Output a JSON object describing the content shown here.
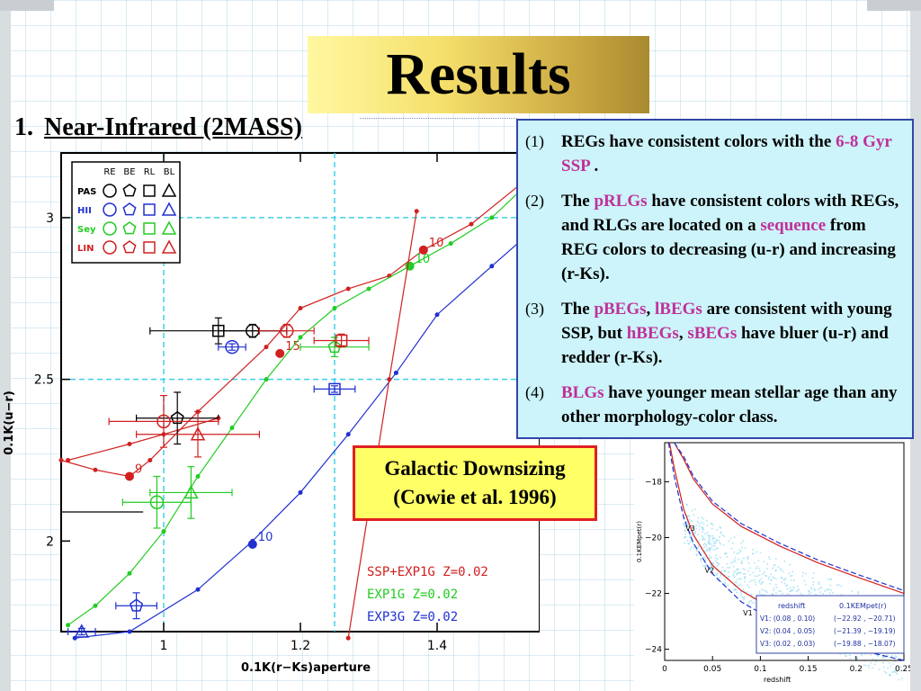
{
  "slide": {
    "title": "Results",
    "section_number": "1.",
    "section_title": "Near-Infrared (2MASS)"
  },
  "info_points": [
    {
      "idx": "(1)",
      "parts": [
        {
          "t": "REGs have consistent colors with the ",
          "hl": false
        },
        {
          "t": "6-8 Gyr SSP",
          "hl": true
        },
        {
          "t": " .",
          "hl": false
        }
      ]
    },
    {
      "idx": "(2)",
      "parts": [
        {
          "t": "The ",
          "hl": false
        },
        {
          "t": "pRLGs",
          "hl": true
        },
        {
          "t": " have consistent colors with REGs, and RLGs are located on a ",
          "hl": false
        },
        {
          "t": "sequence",
          "hl": true
        },
        {
          "t": " from REG colors to decreasing (u-r) and increasing (r-Ks).",
          "hl": false
        }
      ]
    },
    {
      "idx": "(3)",
      "parts": [
        {
          "t": "The ",
          "hl": false
        },
        {
          "t": "pBEGs",
          "hl": true
        },
        {
          "t": ", ",
          "hl": false
        },
        {
          "t": "lBEGs",
          "hl": true
        },
        {
          "t": " are consistent with young SSP, but ",
          "hl": false
        },
        {
          "t": "hBEGs",
          "hl": true
        },
        {
          "t": ", ",
          "hl": false
        },
        {
          "t": "sBEGs",
          "hl": true
        },
        {
          "t": " have bluer (u-r) and redder (r-Ks).",
          "hl": false
        }
      ]
    },
    {
      "idx": "(4)",
      "parts": [
        {
          "t": "BLGs",
          "hl": true
        },
        {
          "t": " have younger mean stellar age than any other morphology-color class.",
          "hl": false
        }
      ]
    }
  ],
  "callout": {
    "line1": "Galactic Downsizing",
    "line2": "(Cowie et al. 1996)"
  },
  "colors": {
    "red": "#d02020",
    "green": "#22cc22",
    "blue": "#2030d0",
    "black": "#000000",
    "cyan_grid": "#40d0e8",
    "highlight": "#c0309a"
  },
  "chart_data": [
    {
      "type": "scatter",
      "xlabel": "0.1K(r−Ks)aperture",
      "ylabel": "0.1K(u−r)",
      "xlim": [
        0.85,
        1.55
      ],
      "ylim": [
        1.72,
        3.2
      ],
      "x_ticks": [
        {
          "v": 1,
          "label": "1"
        },
        {
          "v": 1.2,
          "label": "1.2"
        },
        {
          "v": 1.4,
          "label": "1.4"
        }
      ],
      "y_ticks": [
        {
          "v": 2,
          "label": "2"
        },
        {
          "v": 2.5,
          "label": "2.5"
        },
        {
          "v": 3,
          "label": "3"
        }
      ],
      "ref_x": [
        1.0,
        1.25
      ],
      "ref_y": [
        2.5,
        3.0
      ],
      "legend": {
        "columns": [
          "RE",
          "BE",
          "RL",
          "BL"
        ],
        "rows": [
          {
            "label": "PAS",
            "color": "#000000"
          },
          {
            "label": "HII",
            "color": "#2030d0"
          },
          {
            "label": "Sey",
            "color": "#22cc22"
          },
          {
            "label": "LIN",
            "color": "#d02020"
          }
        ]
      },
      "model_legend": [
        {
          "label": "SSP+EXP1G Z=0.02",
          "color": "#d02020"
        },
        {
          "label": "EXP1G Z=0.02",
          "color": "#22cc22"
        },
        {
          "label": "EXP3G Z=0.02",
          "color": "#2030d0"
        }
      ],
      "series": [
        {
          "name": "SSP+EXP1G Z=0.02",
          "color": "#d02020",
          "x": [
            0.85,
            0.9,
            0.95,
            0.98,
            1.05,
            1.15,
            1.2,
            1.27,
            1.33,
            1.38,
            1.45,
            1.52
          ],
          "y": [
            2.25,
            2.22,
            2.2,
            2.25,
            2.4,
            2.6,
            2.72,
            2.78,
            2.82,
            2.9,
            2.98,
            3.1
          ],
          "markers": [
            {
              "x": 0.95,
              "y": 2.2,
              "label": "9"
            },
            {
              "x": 1.17,
              "y": 2.58,
              "label": "15"
            },
            {
              "x": 1.38,
              "y": 2.9,
              "label": "10"
            }
          ]
        },
        {
          "name": "EXP1G Z=0.02",
          "color": "#22cc22",
          "x": [
            0.86,
            0.9,
            0.95,
            1.0,
            1.05,
            1.1,
            1.15,
            1.2,
            1.25,
            1.3,
            1.36,
            1.42,
            1.48,
            1.54
          ],
          "y": [
            1.74,
            1.8,
            1.9,
            2.03,
            2.2,
            2.35,
            2.5,
            2.63,
            2.72,
            2.78,
            2.85,
            2.92,
            3.0,
            3.12
          ],
          "markers": [
            {
              "x": 1.36,
              "y": 2.85,
              "label": "10"
            }
          ]
        },
        {
          "name": "EXP3G Z=0.02",
          "color": "#2030d0",
          "x": [
            0.87,
            0.95,
            1.05,
            1.13,
            1.2,
            1.27,
            1.34,
            1.4,
            1.48,
            1.55
          ],
          "y": [
            1.7,
            1.72,
            1.85,
            2.0,
            2.15,
            2.33,
            2.52,
            2.7,
            2.85,
            2.98
          ],
          "markers": [
            {
              "x": 1.13,
              "y": 1.99,
              "label": "10"
            }
          ]
        },
        {
          "name": "",
          "color": "#d02020",
          "x": [
            1.37,
            1.33,
            1.3,
            1.27
          ],
          "y": [
            3.02,
            2.5,
            2.1,
            1.7
          ],
          "markers": []
        },
        {
          "name": "",
          "color": "#d02020",
          "x": [
            0.86,
            0.95,
            1.0,
            1.08
          ],
          "y": [
            2.25,
            2.3,
            2.33,
            2.38
          ],
          "markers": []
        }
      ],
      "points": [
        {
          "x": 1.08,
          "y": 2.65,
          "xerr": 0.1,
          "yerr": 0.04,
          "shape": "square",
          "color": "#000000"
        },
        {
          "x": 1.13,
          "y": 2.65,
          "xerr": 0.05,
          "yerr": 0.02,
          "shape": "circle",
          "color": "#000000"
        },
        {
          "x": 1.18,
          "y": 2.65,
          "xerr": 0.04,
          "yerr": 0.02,
          "shape": "circle",
          "color": "#d02020"
        },
        {
          "x": 1.1,
          "y": 2.6,
          "xerr": 0.02,
          "yerr": 0.01,
          "shape": "circle",
          "color": "#2030d0"
        },
        {
          "x": 1.25,
          "y": 2.6,
          "xerr": 0.05,
          "yerr": 0.03,
          "shape": "pentagon",
          "color": "#22cc22"
        },
        {
          "x": 1.26,
          "y": 2.62,
          "xerr": 0.04,
          "yerr": 0.02,
          "shape": "square",
          "color": "#d02020"
        },
        {
          "x": 1.25,
          "y": 2.47,
          "xerr": 0.03,
          "yerr": 0.01,
          "shape": "square",
          "color": "#2030d0"
        },
        {
          "x": 1.02,
          "y": 2.38,
          "xerr": 0.06,
          "yerr": 0.08,
          "shape": "pentagon",
          "color": "#000000"
        },
        {
          "x": 1.0,
          "y": 2.37,
          "xerr": 0.08,
          "yerr": 0.08,
          "shape": "circle",
          "color": "#d02020"
        },
        {
          "x": 1.05,
          "y": 2.33,
          "xerr": 0.09,
          "yerr": 0.07,
          "shape": "triangle",
          "color": "#d02020"
        },
        {
          "x": 0.99,
          "y": 2.12,
          "xerr": 0.05,
          "yerr": 0.08,
          "shape": "circle",
          "color": "#22cc22"
        },
        {
          "x": 1.04,
          "y": 2.15,
          "xerr": 0.06,
          "yerr": 0.08,
          "shape": "triangle",
          "color": "#22cc22"
        },
        {
          "x": 0.96,
          "y": 1.8,
          "xerr": 0.03,
          "yerr": 0.04,
          "shape": "pentagon",
          "color": "#2030d0"
        },
        {
          "x": 0.88,
          "y": 1.72,
          "xerr": 0.02,
          "yerr": 0.01,
          "shape": "triangle",
          "color": "#2030d0"
        }
      ],
      "hbars": [
        {
          "y": 2.09,
          "x1": 0.85,
          "x2": 0.97,
          "color": "#000000"
        }
      ]
    },
    {
      "type": "scatter",
      "xlabel": "redshift",
      "ylabel": "0.1KEMpet(r)",
      "xlim": [
        0,
        0.25
      ],
      "ylim": [
        -16.6,
        -24.4
      ],
      "x_ticks": [
        {
          "v": 0,
          "label": "0"
        },
        {
          "v": 0.05,
          "label": "0.05"
        },
        {
          "v": 0.1,
          "label": "0.1"
        },
        {
          "v": 0.15,
          "label": "0.15"
        },
        {
          "v": 0.2,
          "label": "0.2"
        },
        {
          "v": 0.25,
          "label": "0.25"
        }
      ],
      "y_ticks": [
        {
          "v": -18,
          "label": "−18"
        },
        {
          "v": -20,
          "label": "−20"
        },
        {
          "v": -22,
          "label": "−22"
        },
        {
          "v": -24,
          "label": "−24"
        }
      ],
      "curves": [
        {
          "color": "#d02020",
          "dash": false,
          "x": [
            0.005,
            0.01,
            0.02,
            0.03,
            0.05,
            0.08,
            0.12,
            0.16,
            0.2,
            0.25
          ],
          "y": [
            -16.6,
            -17.5,
            -19.0,
            -19.9,
            -21.0,
            -21.9,
            -22.7,
            -23.2,
            -23.7,
            -24.1
          ]
        },
        {
          "color": "#2030d0",
          "dash": true,
          "x": [
            0.004,
            0.01,
            0.02,
            0.03,
            0.05,
            0.08,
            0.12,
            0.16,
            0.2,
            0.25
          ],
          "y": [
            -16.6,
            -17.8,
            -19.3,
            -20.2,
            -21.3,
            -22.3,
            -23.1,
            -23.6,
            -24.0,
            -24.4
          ]
        },
        {
          "color": "#d02020",
          "dash": false,
          "x": [
            0.01,
            0.02,
            0.03,
            0.05,
            0.08,
            0.12,
            0.16,
            0.2,
            0.25
          ],
          "y": [
            -16.6,
            -17.2,
            -17.9,
            -18.8,
            -19.6,
            -20.3,
            -20.9,
            -21.4,
            -22.0
          ]
        },
        {
          "color": "#2030d0",
          "dash": true,
          "x": [
            0.01,
            0.02,
            0.03,
            0.05,
            0.08,
            0.12,
            0.16,
            0.2,
            0.25
          ],
          "y": [
            -16.6,
            -17.1,
            -17.8,
            -18.7,
            -19.5,
            -20.2,
            -20.8,
            -21.3,
            -21.9
          ]
        }
      ],
      "boxes": [
        {
          "label": "V1",
          "z": [
            0.08,
            0.1
          ],
          "m": [
            -22.92,
            -20.71
          ],
          "color": "#000000",
          "fill": false
        },
        {
          "label": "V2",
          "z": [
            0.04,
            0.05
          ],
          "m": [
            -21.39,
            -19.19
          ],
          "color": "#000000",
          "fill": false
        },
        {
          "label": "V3",
          "z": [
            0.02,
            0.03
          ],
          "m": [
            -19.88,
            -18.07
          ],
          "color": "#e02020",
          "fill": true
        }
      ],
      "table": {
        "headers": [
          "redshift",
          "0.1KEMpet(r)"
        ],
        "rows": [
          [
            "V1: (0.08 , 0.10)",
            "(−22.92 , −20.71)"
          ],
          [
            "V2: (0.04 , 0.05)",
            "(−21.39 , −19.19)"
          ],
          [
            "V3: (0.02 , 0.03)",
            "(−19.88 , −18.07)"
          ]
        ]
      }
    }
  ]
}
